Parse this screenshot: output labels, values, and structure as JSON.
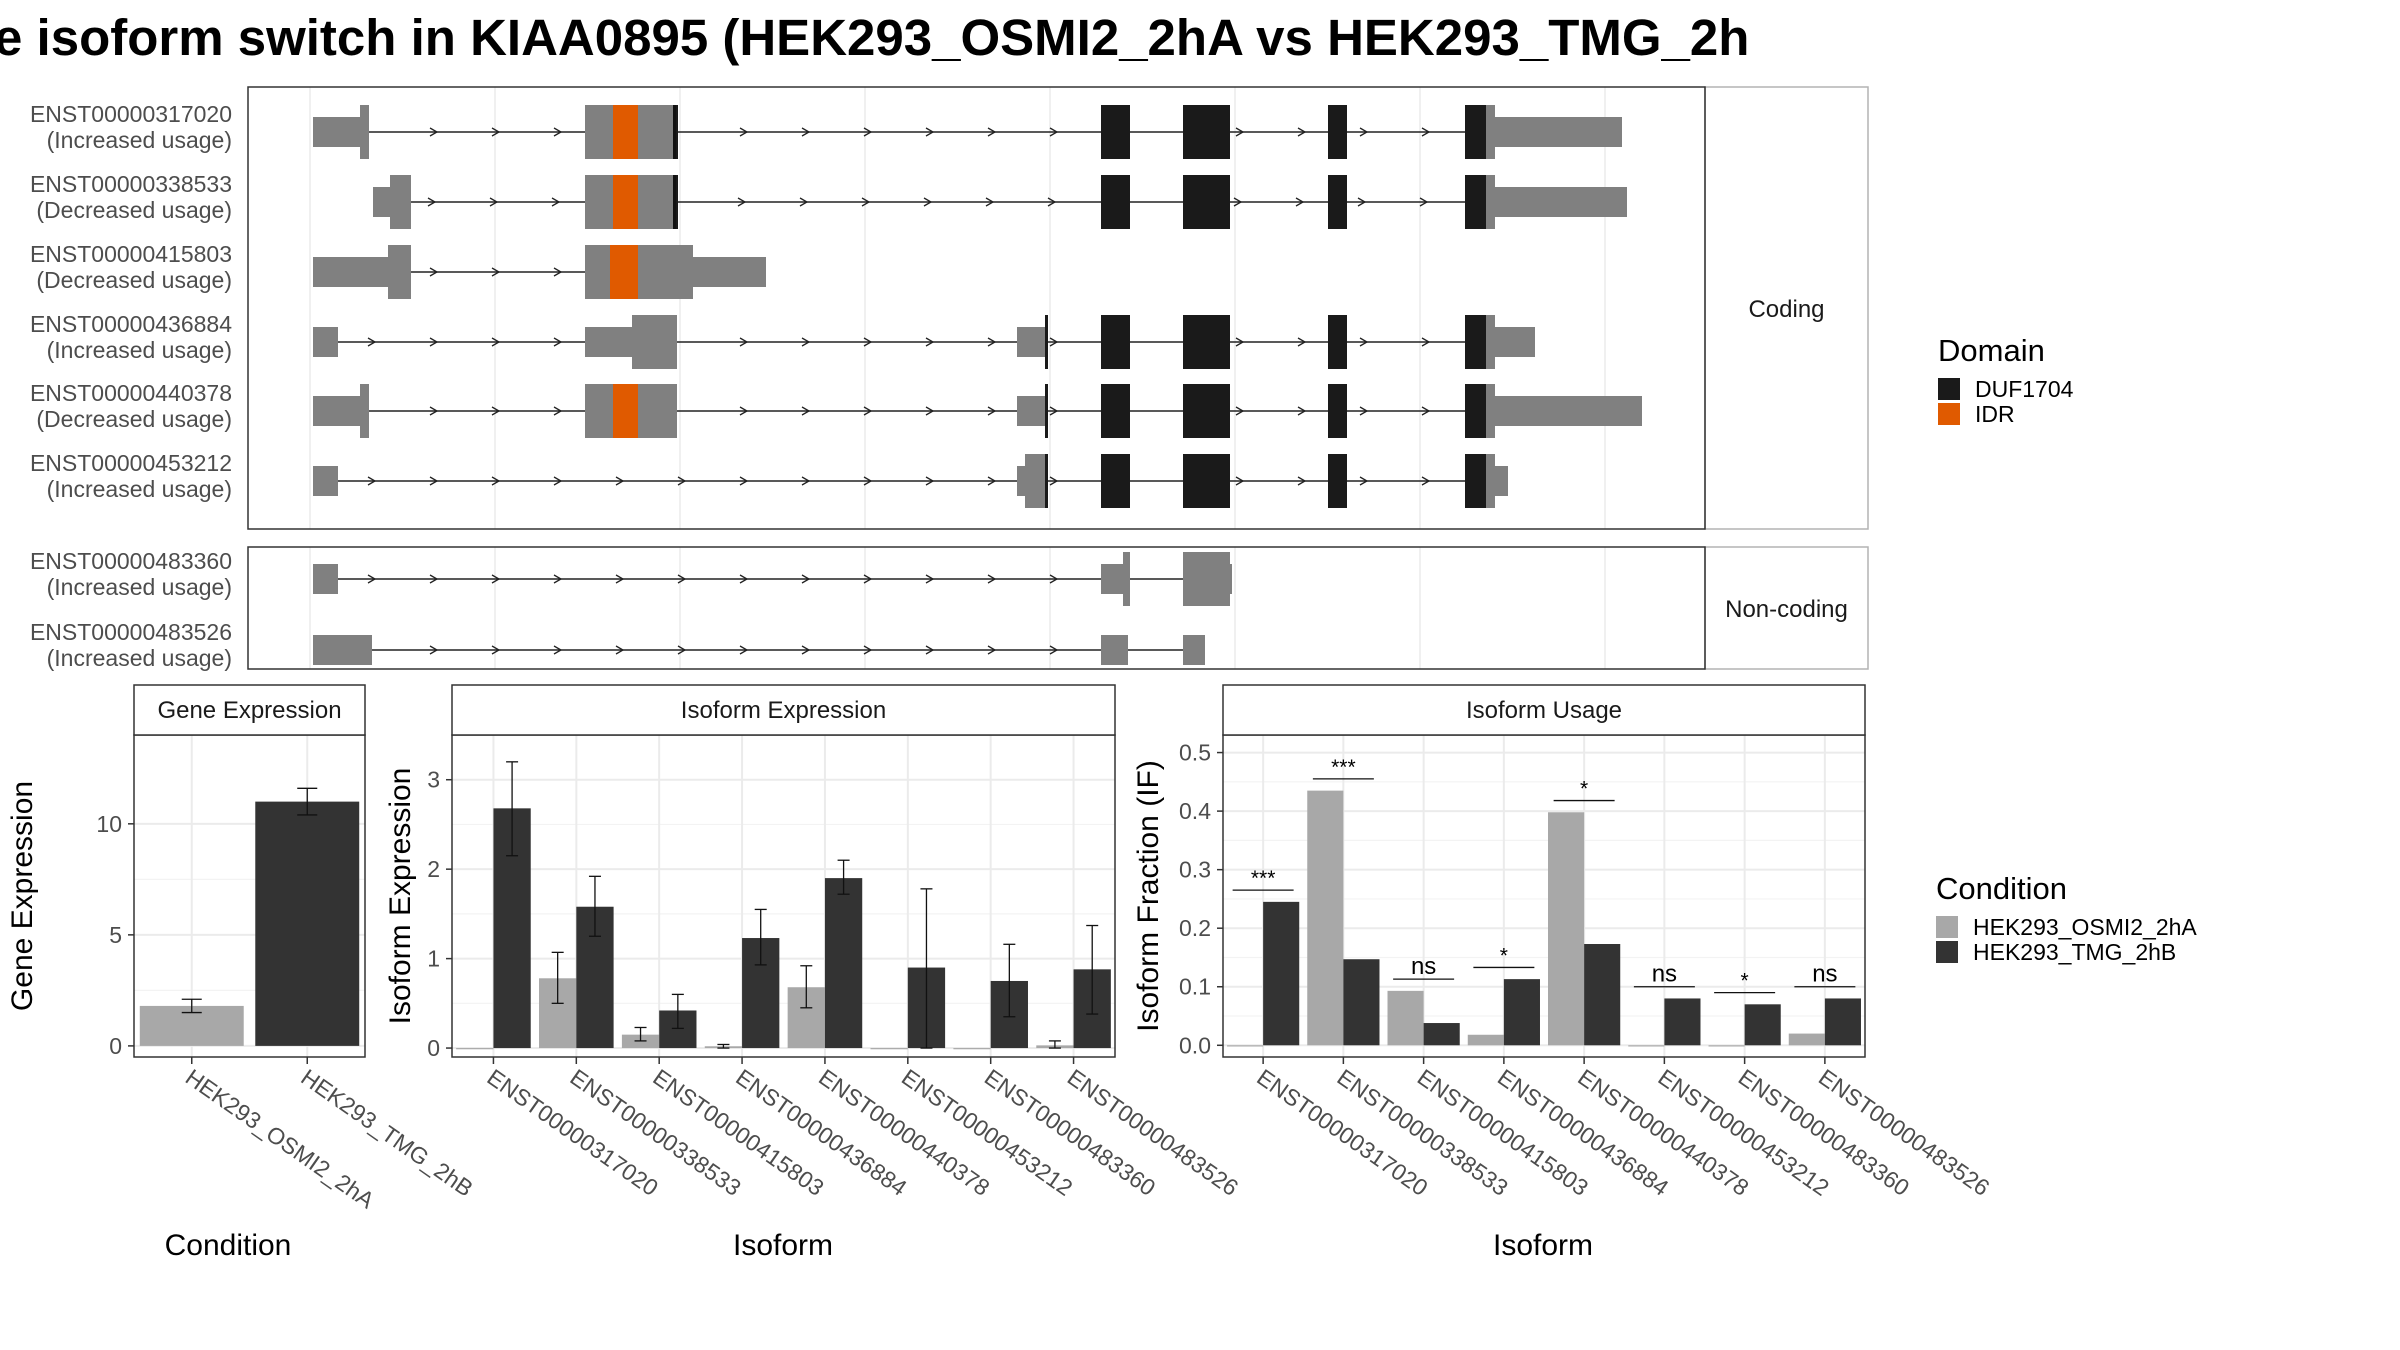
{
  "title": "e isoform switch in KIAA0895 (HEK293_OSMI2_2hA vs HEK293_TMG_2h",
  "colors": {
    "utr": "#808080",
    "duf": "#1a1a1a",
    "idr": "#e05a00",
    "cond1": "#a8a8a8",
    "cond2": "#333333",
    "grid": "#ebebeb",
    "line": "#303030"
  },
  "structure": {
    "coding_label": "Coding",
    "noncoding_label": "Non-coding",
    "coding": [
      {
        "id": "ENST00000317020",
        "note": "(Increased usage)"
      },
      {
        "id": "ENST00000338533",
        "note": "(Decreased usage)"
      },
      {
        "id": "ENST00000415803",
        "note": "(Decreased usage)"
      },
      {
        "id": "ENST00000436884",
        "note": "(Increased usage)"
      },
      {
        "id": "ENST00000440378",
        "note": "(Decreased usage)"
      },
      {
        "id": "ENST00000453212",
        "note": "(Increased usage)"
      }
    ],
    "noncoding": [
      {
        "id": "ENST00000483360",
        "note": "(Increased usage)"
      },
      {
        "id": "ENST00000483526",
        "note": "(Increased usage)"
      }
    ]
  },
  "legend_domain": {
    "title": "Domain",
    "items": [
      {
        "label": "DUF1704",
        "color": "#1a1a1a"
      },
      {
        "label": "IDR",
        "color": "#e05a00"
      }
    ]
  },
  "legend_condition": {
    "title": "Condition",
    "items": [
      {
        "label": "HEK293_OSMI2_2hA",
        "color": "#a8a8a8"
      },
      {
        "label": "HEK293_TMG_2hB",
        "color": "#333333"
      }
    ]
  },
  "chart_data": [
    {
      "type": "bar",
      "title": "Gene Expression",
      "xlabel": "Condition",
      "ylabel": "Gene Expression",
      "categories": [
        "HEK293_OSMI2_2hA",
        "HEK293_TMG_2hB"
      ],
      "values": [
        1.8,
        11.0
      ],
      "errors": [
        [
          1.5,
          2.1
        ],
        [
          10.4,
          11.6
        ]
      ],
      "yticks": [
        0,
        5,
        10
      ],
      "ylim": [
        -0.5,
        14
      ]
    },
    {
      "type": "bar",
      "title": "Isoform Expression",
      "xlabel": "Isoform",
      "ylabel": "Isoform Expression",
      "categories": [
        "ENST00000317020",
        "ENST00000338533",
        "ENST00000415803",
        "ENST00000436884",
        "ENST00000440378",
        "ENST00000453212",
        "ENST00000483360",
        "ENST00000483526"
      ],
      "series": [
        {
          "name": "HEK293_OSMI2_2hA",
          "values": [
            0.0,
            0.78,
            0.15,
            0.02,
            0.68,
            0.0,
            0.0,
            0.03
          ],
          "errors": [
            [
              0.0,
              0.0
            ],
            [
              0.5,
              1.07
            ],
            [
              0.08,
              0.23
            ],
            [
              0.0,
              0.04
            ],
            [
              0.45,
              0.92
            ],
            [
              0.0,
              0.0
            ],
            [
              0.0,
              0.0
            ],
            [
              0.0,
              0.08
            ]
          ]
        },
        {
          "name": "HEK293_TMG_2hB",
          "values": [
            2.68,
            1.58,
            0.42,
            1.23,
            1.9,
            0.9,
            0.75,
            0.88
          ],
          "errors": [
            [
              2.15,
              3.2
            ],
            [
              1.25,
              1.92
            ],
            [
              0.22,
              0.6
            ],
            [
              0.93,
              1.55
            ],
            [
              1.72,
              2.1
            ],
            [
              0.0,
              1.78
            ],
            [
              0.35,
              1.16
            ],
            [
              0.38,
              1.37
            ]
          ]
        }
      ],
      "yticks": [
        0,
        1,
        2,
        3
      ],
      "ylim": [
        -0.1,
        3.5
      ]
    },
    {
      "type": "bar",
      "title": "Isoform Usage",
      "xlabel": "Isoform",
      "ylabel": "Isoform Fraction (IF)",
      "categories": [
        "ENST00000317020",
        "ENST00000338533",
        "ENST00000415803",
        "ENST00000436884",
        "ENST00000440378",
        "ENST00000453212",
        "ENST00000483360",
        "ENST00000483526"
      ],
      "series": [
        {
          "name": "HEK293_OSMI2_2hA",
          "values": [
            0.0,
            0.435,
            0.093,
            0.018,
            0.398,
            0.0,
            0.0,
            0.02
          ]
        },
        {
          "name": "HEK293_TMG_2hB",
          "values": [
            0.245,
            0.147,
            0.038,
            0.113,
            0.173,
            0.08,
            0.07,
            0.08
          ]
        }
      ],
      "significance": [
        "***",
        "***",
        "ns",
        "*",
        "*",
        "ns",
        "*",
        "ns"
      ],
      "sig_y": [
        0.265,
        0.455,
        0.113,
        0.133,
        0.418,
        0.1,
        0.09,
        0.1
      ],
      "yticks": [
        0.0,
        0.1,
        0.2,
        0.3,
        0.4,
        0.5
      ],
      "ylim": [
        -0.02,
        0.53
      ]
    }
  ]
}
